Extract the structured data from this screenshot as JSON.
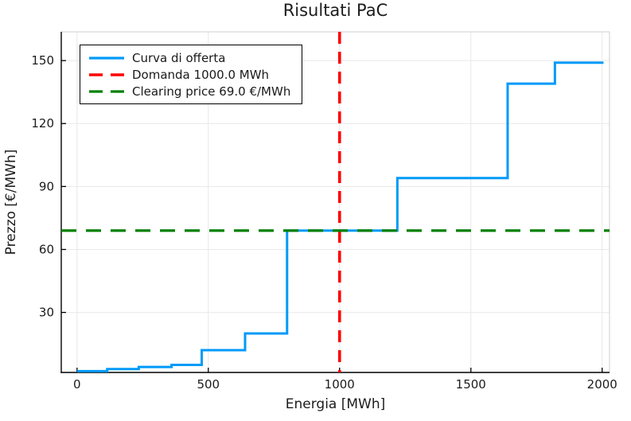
{
  "chart_data": {
    "type": "line",
    "title": "Risultati PaC",
    "xlabel": "Energia [MWh]",
    "ylabel": "Prezzo [€/MWh]",
    "x_ticks": [
      0,
      500,
      1000,
      1500,
      2000
    ],
    "y_ticks": [
      30,
      60,
      90,
      120,
      150
    ],
    "x_range": [
      -60,
      2028
    ],
    "y_range": [
      1.4,
      163.7
    ],
    "grid": true,
    "legend_position": "top-left",
    "background_color": "#ffffff",
    "grid_color": "#e8e8e8",
    "axis_color": "#000000",
    "series": [
      {
        "name": "Curva di offerta",
        "kind": "step",
        "color": "#009AF9",
        "style": "solid",
        "steps": [
          {
            "q_start": 0,
            "q_end": 115,
            "price": 2
          },
          {
            "q_start": 115,
            "q_end": 235,
            "price": 3
          },
          {
            "q_start": 235,
            "q_end": 360,
            "price": 4
          },
          {
            "q_start": 360,
            "q_end": 475,
            "price": 5
          },
          {
            "q_start": 475,
            "q_end": 640,
            "price": 12
          },
          {
            "q_start": 640,
            "q_end": 800,
            "price": 20
          },
          {
            "q_start": 800,
            "q_end": 1220,
            "price": 69
          },
          {
            "q_start": 1220,
            "q_end": 1640,
            "price": 94
          },
          {
            "q_start": 1640,
            "q_end": 1820,
            "price": 139
          },
          {
            "q_start": 1820,
            "q_end": 2005,
            "price": 149
          }
        ]
      },
      {
        "name": "Domanda 1000.0 MWh",
        "kind": "vline",
        "color": "#FF0000",
        "style": "dashed",
        "x": 1000
      },
      {
        "name": "Clearing price 69.0 €/MWh",
        "kind": "hline",
        "color": "#008000",
        "style": "dashed",
        "y": 69
      }
    ]
  }
}
